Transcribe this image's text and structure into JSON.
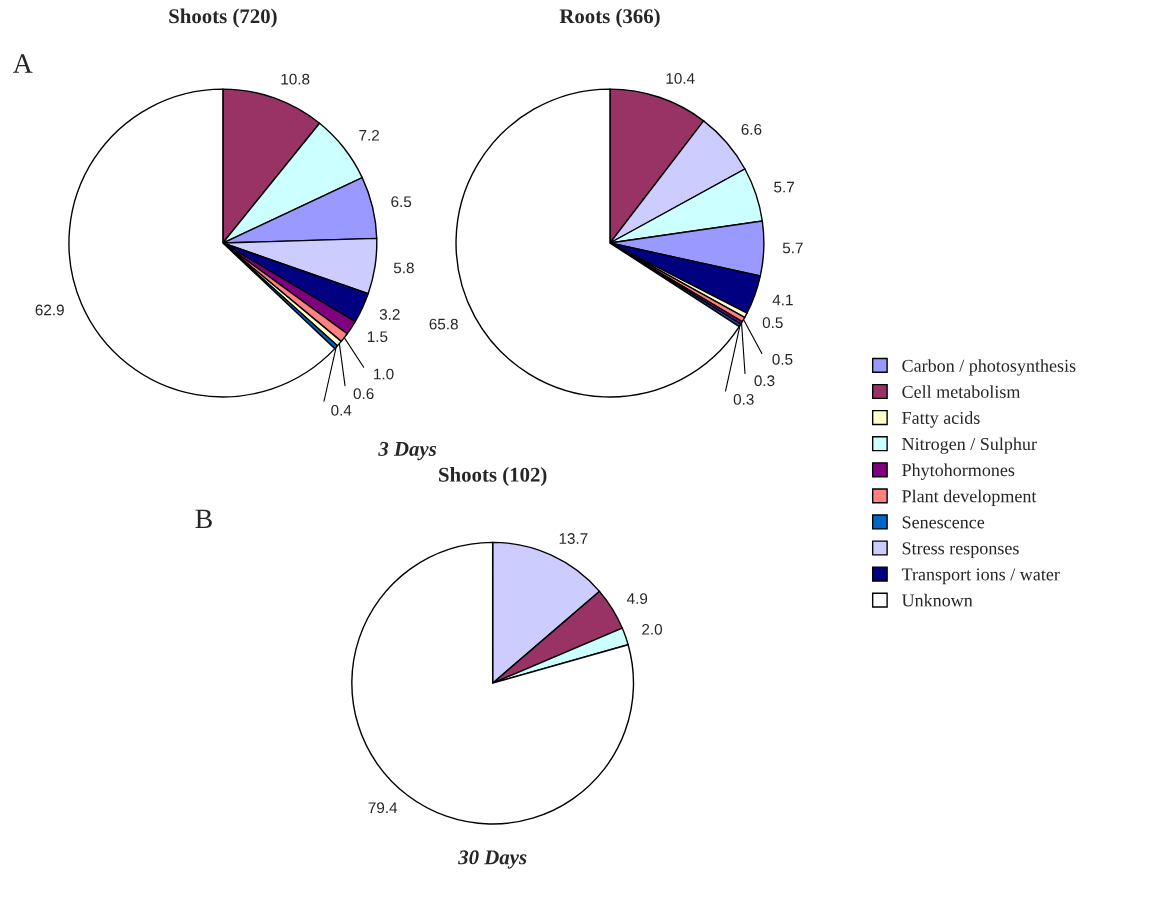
{
  "chart_data": [
    {
      "type": "pie",
      "title": "Shoots (720)",
      "annotations": [
        "A",
        "3 Days"
      ],
      "legend": "right",
      "value_labels": [
        "10.8",
        "7.2",
        "6.5",
        "5.8",
        "3.2",
        "1.5",
        "1.0",
        "0.6",
        "0.4",
        "62.9"
      ],
      "categories": [
        "Cell metabolism",
        "Nitrogen / Sulphur",
        "Carbon / photosynthesis",
        "Stress responses",
        "Transport ions / water",
        "Phytohormones",
        "Plant development",
        "Fatty acids",
        "Senescence",
        "Unknown"
      ],
      "values": [
        10.8,
        7.2,
        6.5,
        5.8,
        3.2,
        1.5,
        1.0,
        0.6,
        0.4,
        62.9
      ],
      "colors": [
        "#993366",
        "#ccffff",
        "#9999ff",
        "#ccccff",
        "#000080",
        "#800080",
        "#ff8080",
        "#ffffcc",
        "#0066cc",
        "#ffffff"
      ]
    },
    {
      "type": "pie",
      "title": "Roots (366)",
      "value_labels": [
        "10.4",
        "6.6",
        "5.7",
        "5.7",
        "4.1",
        "0.5",
        "0.5",
        "0.3",
        "0.3",
        "65.8"
      ],
      "categories": [
        null,
        null,
        null,
        null,
        null,
        null,
        null,
        null,
        null,
        null
      ],
      "values": [
        10.4,
        6.6,
        5.7,
        5.7,
        4.1,
        0.5,
        0.5,
        0.3,
        0.3,
        65.8
      ],
      "colors": [
        "#993366",
        "#ccccff",
        "#ccffff",
        "#9999ff",
        "#000080",
        "#ffffcc",
        "#ff8080",
        "#800080",
        "#0066cc",
        "#ffffff"
      ]
    },
    {
      "type": "pie",
      "title": "Shoots (102)",
      "annotations": [
        "B",
        "30 Days"
      ],
      "value_labels": [
        "13.7",
        "4.9",
        "2.0",
        "79.4"
      ],
      "categories": [
        null,
        null,
        null,
        null
      ],
      "values": [
        13.7,
        4.9,
        2.0,
        79.4
      ],
      "colors": [
        "#ccccff",
        "#993366",
        "#ccffff",
        "#ffffff"
      ]
    }
  ]
}
